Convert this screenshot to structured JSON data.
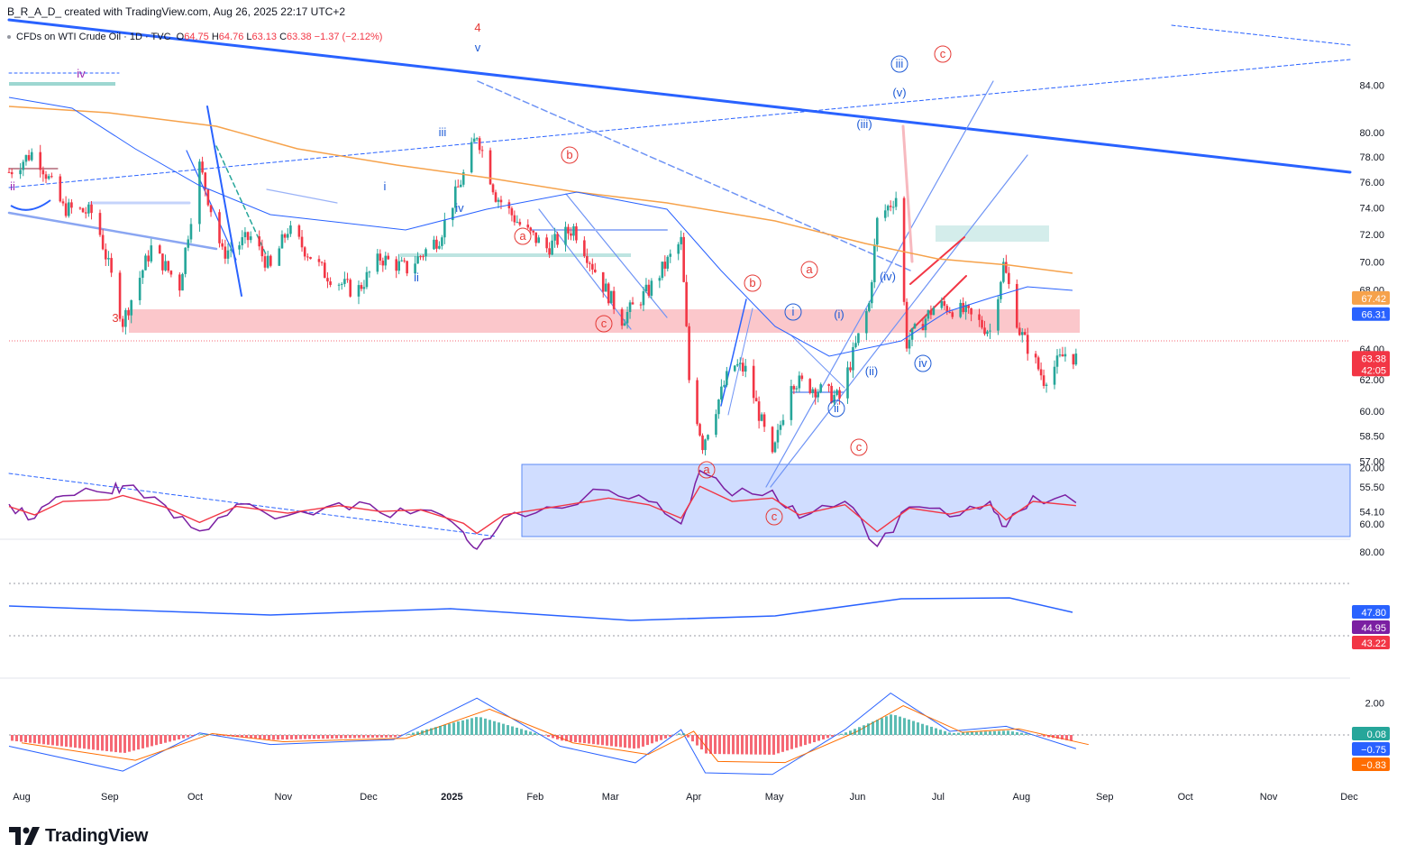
{
  "header": {
    "title": "B_R_A_D_ created with TradingView.com, Aug 26, 2025 22:17 UTC+2"
  },
  "symbol": {
    "name": "CFDs on WTI Crude Oil · 1D · TVC",
    "open_label": "O",
    "open": "64.75",
    "high_label": "H",
    "high": "64.76",
    "low_label": "L",
    "low": "63.13",
    "close_label": "C",
    "close": "63.38",
    "change": "−1.37 (−2.12%)"
  },
  "brand": {
    "name": "TradingView",
    "logo_icon": "tradingview-logo-icon"
  },
  "colors": {
    "up": "#26a69a",
    "down": "#f23645",
    "trendline": "#2962ff",
    "wave_red": "#e53935",
    "wave_blue": "#1e5bd6",
    "ma_long": "#f6a24b",
    "ma_short": "#2962ff",
    "rsi": "#7b1fa2",
    "rsi_ma": "#f23645",
    "macd": "#2962ff",
    "signal": "#ff6d00"
  },
  "chart_data": [
    {
      "type": "candlestick",
      "name": "price",
      "x_axis": {
        "labels": [
          "Aug",
          "Sep",
          "Oct",
          "Nov",
          "Dec",
          "2025",
          "Feb",
          "Mar",
          "Apr",
          "May",
          "Jun",
          "Jul",
          "Aug",
          "Sep",
          "Oct",
          "Nov",
          "Dec"
        ]
      },
      "y_axis": {
        "ticks": [
          "84.00",
          "80.00",
          "78.00",
          "76.00",
          "74.00",
          "72.00",
          "70.00",
          "68.00",
          "64.00",
          "62.00",
          "60.00",
          "58.50",
          "57.00",
          "55.50",
          "54.10"
        ],
        "scale": "log"
      },
      "price_labels": [
        {
          "value": "67.42",
          "color": "#f6a24b"
        },
        {
          "value": "66.31",
          "color": "#2962ff"
        },
        {
          "value": "63.38",
          "sub": "42:05",
          "color": "#f23645"
        }
      ],
      "close_path": [
        [
          "2024-08-01",
          76.8
        ],
        [
          "2024-08-10",
          78.5
        ],
        [
          "2024-08-20",
          74.0
        ],
        [
          "2024-08-31",
          73.6
        ],
        [
          "2024-09-10",
          65.8
        ],
        [
          "2024-09-20",
          71.0
        ],
        [
          "2024-09-30",
          68.3
        ],
        [
          "2024-10-07",
          77.3
        ],
        [
          "2024-10-15",
          70.6
        ],
        [
          "2024-10-25",
          71.8
        ],
        [
          "2024-11-01",
          69.5
        ],
        [
          "2024-11-07",
          72.4
        ],
        [
          "2024-11-20",
          69.2
        ],
        [
          "2024-12-01",
          67.8
        ],
        [
          "2024-12-10",
          70.3
        ],
        [
          "2024-12-20",
          69.5
        ],
        [
          "2025-01-01",
          71.8
        ],
        [
          "2025-01-10",
          76.6
        ],
        [
          "2025-01-15",
          79.9
        ],
        [
          "2025-01-22",
          75.0
        ],
        [
          "2025-02-01",
          72.5
        ],
        [
          "2025-02-10",
          71.0
        ],
        [
          "2025-02-20",
          72.5
        ],
        [
          "2025-03-01",
          69.0
        ],
        [
          "2025-03-10",
          66.0
        ],
        [
          "2025-03-20",
          68.0
        ],
        [
          "2025-04-01",
          71.5
        ],
        [
          "2025-04-04",
          62.0
        ],
        [
          "2025-04-09",
          58.0
        ],
        [
          "2025-04-20",
          63.0
        ],
        [
          "2025-04-25",
          62.6
        ],
        [
          "2025-05-05",
          57.1
        ],
        [
          "2025-05-12",
          62.0
        ],
        [
          "2025-05-20",
          61.5
        ],
        [
          "2025-05-30",
          60.8
        ],
        [
          "2025-06-10",
          67.0
        ],
        [
          "2025-06-13",
          73.0
        ],
        [
          "2025-06-20",
          74.9
        ],
        [
          "2025-06-24",
          64.4
        ],
        [
          "2025-07-05",
          67.0
        ],
        [
          "2025-07-15",
          66.5
        ],
        [
          "2025-07-25",
          65.2
        ],
        [
          "2025-07-30",
          69.8
        ],
        [
          "2025-08-05",
          65.2
        ],
        [
          "2025-08-14",
          62.0
        ],
        [
          "2025-08-22",
          63.7
        ],
        [
          "2025-08-26",
          63.38
        ]
      ],
      "moving_averages": [
        {
          "name": "MA long",
          "value": 67.42,
          "color": "#f6a24b"
        },
        {
          "name": "MA short",
          "value": 66.31,
          "color": "#2962ff"
        }
      ],
      "wave_labels": [
        {
          "text": "iv",
          "color": "#9c27b0"
        },
        {
          "text": "ii",
          "color": "#9c27b0"
        },
        {
          "text": "3",
          "color": "#e53935"
        },
        {
          "text": "4",
          "color": "#e53935"
        },
        {
          "text": "v",
          "color": "#1e5bd6"
        },
        {
          "text": "i",
          "color": "#1e5bd6"
        },
        {
          "text": "ii",
          "color": "#1e5bd6"
        },
        {
          "text": "iii",
          "color": "#1e5bd6"
        },
        {
          "text": "iv",
          "color": "#1e5bd6"
        },
        {
          "text": "a",
          "color": "#e53935"
        },
        {
          "text": "b",
          "color": "#e53935"
        },
        {
          "text": "c",
          "color": "#e53935"
        },
        {
          "text": "(i)",
          "color": "#1e5bd6"
        },
        {
          "text": "(ii)",
          "color": "#1e5bd6"
        },
        {
          "text": "(iii)",
          "color": "#1e5bd6"
        },
        {
          "text": "(iv)",
          "color": "#1e5bd6"
        },
        {
          "text": "(v)",
          "color": "#1e5bd6"
        }
      ]
    },
    {
      "type": "line",
      "name": "RSI",
      "y_axis": {
        "ticks": [
          "80.00",
          "60.00",
          "20.00"
        ]
      },
      "price_labels": [
        {
          "value": "47.80",
          "color": "#2962ff"
        },
        {
          "value": "44.95",
          "color": "#7b1fa2"
        },
        {
          "value": "43.22",
          "color": "#f23645"
        }
      ],
      "bands": [
        [
          70,
          80
        ],
        [
          50,
          62
        ],
        [
          40,
          48
        ],
        [
          20,
          38
        ]
      ],
      "rsi_path": [
        [
          "2024-08-01",
          46
        ],
        [
          "2024-08-10",
          56
        ],
        [
          "2024-08-20",
          40
        ],
        [
          "2024-09-05",
          38
        ],
        [
          "2024-09-10",
          33
        ],
        [
          "2024-09-25",
          47
        ],
        [
          "2024-10-07",
          65
        ],
        [
          "2024-10-20",
          46
        ],
        [
          "2024-11-07",
          54
        ],
        [
          "2024-11-25",
          45
        ],
        [
          "2024-12-10",
          52
        ],
        [
          "2024-12-25",
          50
        ],
        [
          "2025-01-10",
          66
        ],
        [
          "2025-01-15",
          78
        ],
        [
          "2025-01-25",
          56
        ],
        [
          "2025-02-10",
          48
        ],
        [
          "2025-03-05",
          36
        ],
        [
          "2025-03-20",
          44
        ],
        [
          "2025-04-01",
          60
        ],
        [
          "2025-04-08",
          22
        ],
        [
          "2025-04-20",
          40
        ],
        [
          "2025-05-05",
          36
        ],
        [
          "2025-05-15",
          56
        ],
        [
          "2025-06-01",
          44
        ],
        [
          "2025-06-13",
          76
        ],
        [
          "2025-06-25",
          48
        ],
        [
          "2025-07-10",
          55
        ],
        [
          "2025-07-25",
          44
        ],
        [
          "2025-07-31",
          62
        ],
        [
          "2025-08-10",
          40
        ],
        [
          "2025-08-26",
          44.95
        ]
      ]
    },
    {
      "type": "histogram",
      "name": "MACD",
      "y_axis": {
        "ticks": [
          "2.00"
        ]
      },
      "price_labels": [
        {
          "value": "0.08",
          "color": "#26a69a"
        },
        {
          "value": "−0.75",
          "color": "#2962ff"
        },
        {
          "value": "−0.83",
          "color": "#ff6d00"
        }
      ],
      "macd_path": [
        [
          "2024-08-01",
          -0.6
        ],
        [
          "2024-09-10",
          -2.1
        ],
        [
          "2024-10-07",
          0.2
        ],
        [
          "2024-11-01",
          -0.5
        ],
        [
          "2024-12-15",
          -0.2
        ],
        [
          "2025-01-15",
          2.3
        ],
        [
          "2025-02-15",
          -0.6
        ],
        [
          "2025-03-15",
          -1.6
        ],
        [
          "2025-04-01",
          0.4
        ],
        [
          "2025-04-10",
          -2.2
        ],
        [
          "2025-05-05",
          -2.3
        ],
        [
          "2025-06-01",
          0.4
        ],
        [
          "2025-06-18",
          2.6
        ],
        [
          "2025-07-10",
          0.3
        ],
        [
          "2025-07-31",
          0.6
        ],
        [
          "2025-08-26",
          -0.75
        ]
      ]
    }
  ]
}
